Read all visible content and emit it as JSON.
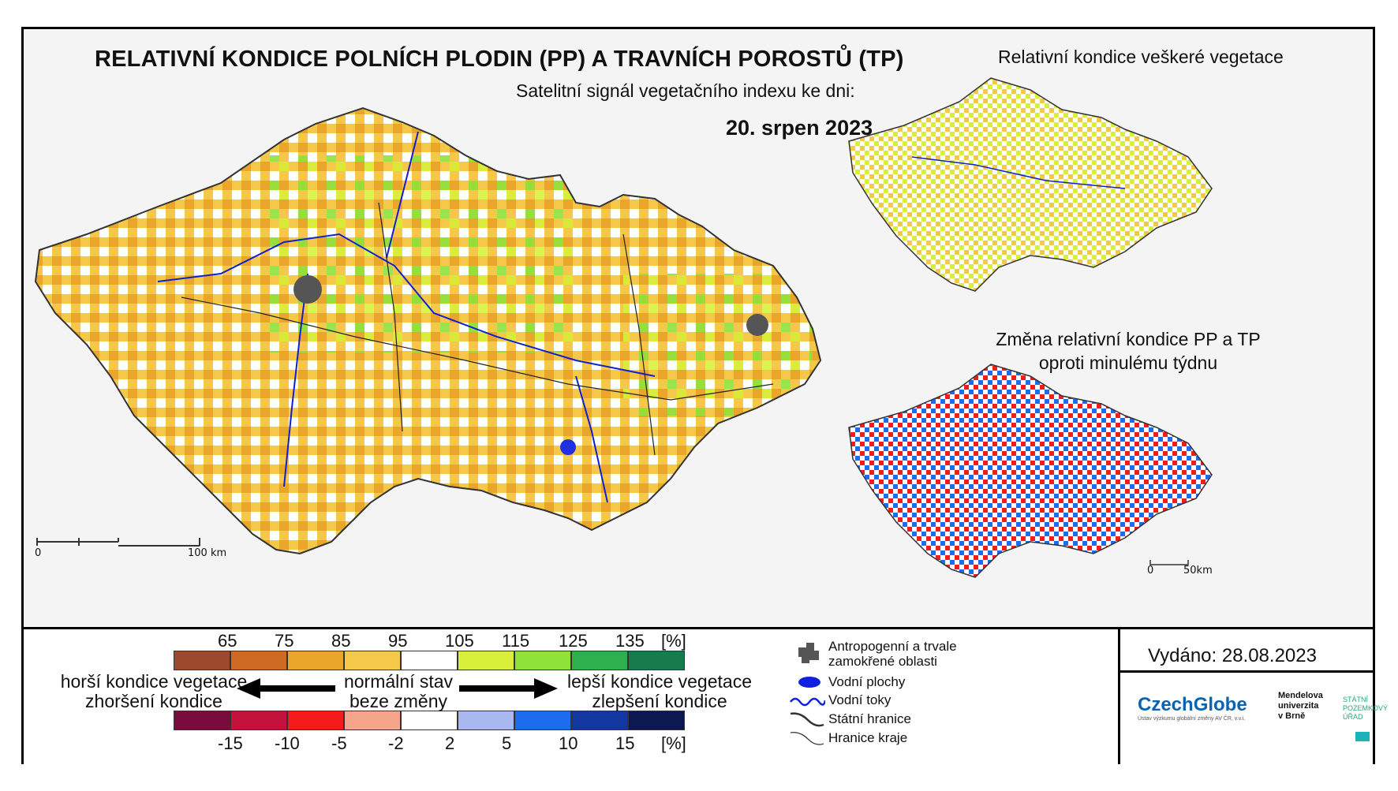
{
  "title": "RELATIVNÍ KONDICE POLNÍCH PLODIN (PP) A TRAVNÍCH POROSTŮ (TP)",
  "subtitle": "Satelitní signál vegetačního indexu ke dni:",
  "date": "20. srpen 2023",
  "right_map_1_title": "Relativní kondice veškeré vegetace",
  "right_map_2_title_line1": "Změna relativní kondice PP a TP",
  "right_map_2_title_line2": "oproti minulému týdnu",
  "main_scale": {
    "start": "0",
    "end": "100 km"
  },
  "small_scale": {
    "start": "0",
    "end": "50km"
  },
  "legend_condition": {
    "ticks": [
      "65",
      "75",
      "85",
      "95",
      "105",
      "115",
      "125",
      "135",
      "[%]"
    ],
    "colors": [
      "#9b4a2c",
      "#cf6a22",
      "#e9a62a",
      "#f6c84a",
      "#ffffff",
      "#d8f03a",
      "#8fe23a",
      "#2fb04f",
      "#167b4d"
    ]
  },
  "legend_change": {
    "ticks": [
      "-15",
      "-10",
      "-5",
      "-2",
      "2",
      "5",
      "10",
      "15",
      "[%]"
    ],
    "colors": [
      "#7a0b3d",
      "#c5123c",
      "#f51b1b",
      "#f6a58d",
      "#ffffff",
      "#a9b9f0",
      "#1c6cf0",
      "#1436a0",
      "#0c1850"
    ]
  },
  "legend_text": {
    "worse_line1": "horší kondice vegetace",
    "worse_line2": "zhoršení kondice",
    "normal_line1": "normální stav",
    "normal_line2": "beze změny",
    "better_line1": "lepší kondice vegetace",
    "better_line2": "zlepšení kondice"
  },
  "symbols": {
    "anthropogenic_line1": "Antropogenní a trvale",
    "anthropogenic_line2": "zamokřené oblasti",
    "water_areas": "Vodní plochy",
    "water_streams": "Vodní toky",
    "state_border": "Státní hranice",
    "region_border": "Hranice kraje"
  },
  "issued": "Vydáno: 28.08.2023",
  "logos": {
    "czechglobe": "CzechGlobe",
    "czechglobe_sub": "Ústav výzkumu globální změny AV ČR, v.v.i.",
    "mendel_line1": "Mendelova",
    "mendel_line2": "univerzita",
    "mendel_line3": "v Brně",
    "spu_line1": "STÁTNÍ",
    "spu_line2": "POZEMKOVÝ",
    "spu_line3": "ÚŘAD"
  }
}
